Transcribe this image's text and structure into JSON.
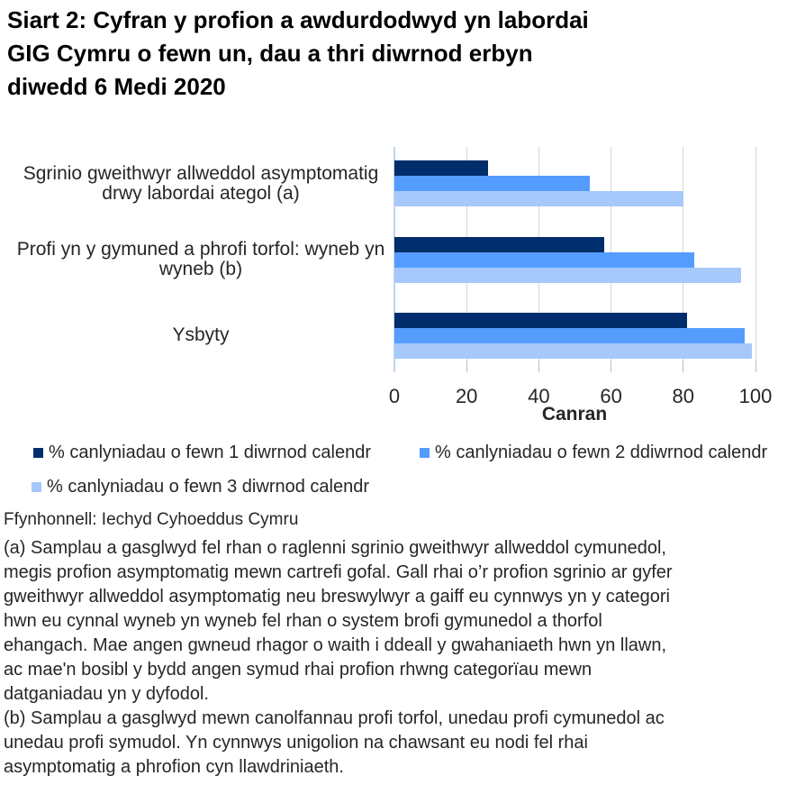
{
  "title": "Siart 2: Cyfran y profion a awdurdodwyd yn labordai\nGIG Cymru o fewn un, dau a thri diwrnod erbyn\ndiwedd 6 Medi 2020",
  "source": "Ffynhonnell: Iechyd Cyhoeddus Cymru",
  "footnotes": [
    "(a) Samplau a gasglwyd fel rhan o raglenni sgrinio gweithwyr allweddol cymunedol,\nmegis profion asymptomatig mewn cartrefi gofal. Gall rhai o’r profion sgrinio ar gyfer\ngweithwyr allweddol asymptomatig neu breswylwyr a gaiff eu cynnwys yn y categori\nhwn eu cynnal wyneb yn wyneb fel rhan o system brofi gymunedol a thorfol\nehangach. Mae angen gwneud rhagor o waith i ddeall y gwahaniaeth hwn yn llawn,\nac mae'n bosibl y bydd angen symud rhai profion rhwng categorïau mewn\ndatganiadau yn y dyfodol.",
    "(b) Samplau a gasglwyd mewn canolfannau profi torfol, unedau profi cymunedol ac\nunedau profi symudol. Yn cynnwys unigolion na chawsant eu nodi fel rhai\nasymptomatig a phrofion cyn llawdriniaeth."
  ],
  "colors": {
    "day1": "#002D6B",
    "day2": "#559CFF",
    "day3": "#A6C8FA",
    "axis_line": "#BDD7EE",
    "gridline": "#D6D6D6"
  },
  "chart_data": {
    "type": "bar",
    "orientation": "horizontal",
    "categories": [
      "Sgrinio gweithwyr allweddol asymptomatig drwy labordai ategol (a)",
      "Profi yn y gymuned a phrofi torfol: wyneb yn wyneb (b)",
      "Ysbyty"
    ],
    "categories_display": [
      "Sgrinio gweithwyr allweddol asymptomatig\ndrwy labordai ategol (a)",
      "Profi yn y gymuned a phrofi torfol: wyneb yn\nwyneb (b)",
      "Ysbyty"
    ],
    "series": [
      {
        "name": "% canlyniadau o fewn 1 diwrnod calendr",
        "color": "#002D6B",
        "values": [
          26,
          58,
          81
        ]
      },
      {
        "name": "% canlyniadau o fewn 2 ddiwrnod calendr",
        "color": "#559CFF",
        "values": [
          54,
          83,
          97
        ]
      },
      {
        "name": "% canlyniadau o fewn 3 diwrnod calendr",
        "color": "#A6C8FA",
        "values": [
          80,
          96,
          99
        ]
      }
    ],
    "xlabel": "Canran",
    "xlim": [
      0,
      100
    ],
    "xticks": [
      0,
      20,
      40,
      60,
      80,
      100
    ],
    "grid": "vertical",
    "legend_position": "bottom-left"
  }
}
